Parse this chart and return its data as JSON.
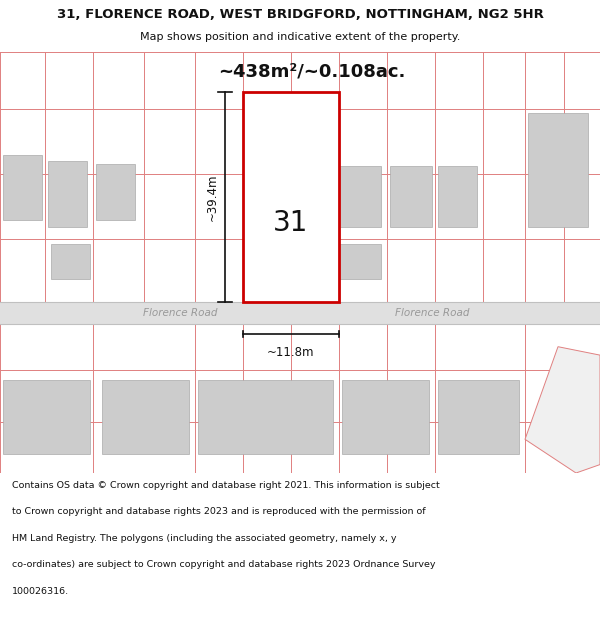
{
  "title_line1": "31, FLORENCE ROAD, WEST BRIDGFORD, NOTTINGHAM, NG2 5HR",
  "title_line2": "Map shows position and indicative extent of the property.",
  "area_text": "~438m²/~0.108ac.",
  "property_number": "31",
  "width_label": "~11.8m",
  "height_label": "~39.4m",
  "road_name": "Florence Road",
  "road_name2": "Florence Road",
  "footer_lines": [
    "Contains OS data © Crown copyright and database right 2021. This information is subject",
    "to Crown copyright and database rights 2023 and is reproduced with the permission of",
    "HM Land Registry. The polygons (including the associated geometry, namely x, y",
    "co-ordinates) are subject to Crown copyright and database rights 2023 Ordnance Survey",
    "100026316."
  ],
  "bg_color": "#ffffff",
  "map_bg": "#f7f7f7",
  "road_color": "#e0e0e0",
  "plot_fill": "#ffffff",
  "plot_outline": "#cc0000",
  "building_fill": "#cccccc",
  "grid_line_color": "#e08080",
  "dim_line_color": "#111111",
  "text_color": "#111111",
  "road_text_color": "#999999"
}
